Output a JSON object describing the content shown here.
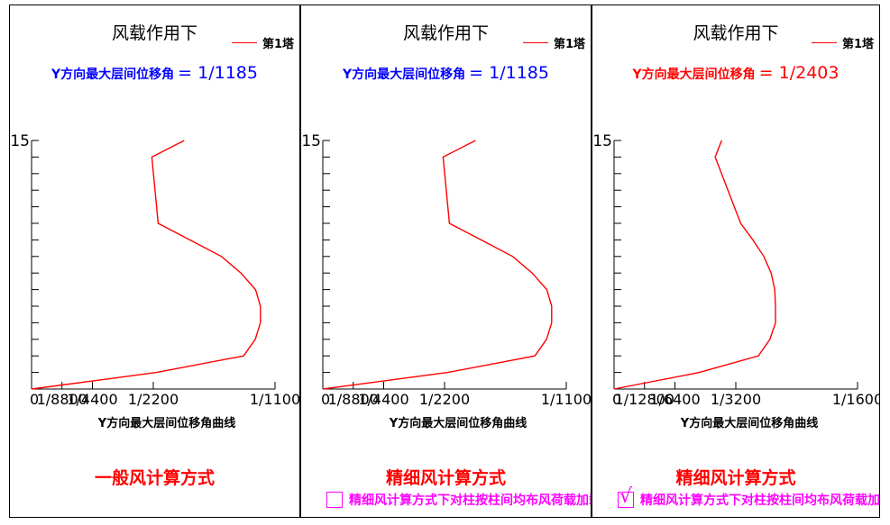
{
  "panels": [
    {
      "title": "风载作用下",
      "legend": "第1塔",
      "drift_label": "Y方向最大层间位移角",
      "drift_eq": "= 1/1185",
      "drift_color": "#0000ff",
      "method": "一般风计算方式",
      "checkbox": null
    },
    {
      "title": "风载作用下",
      "legend": "第1塔",
      "drift_label": "Y方向最大层间位移角",
      "drift_eq": "= 1/1185",
      "drift_color": "#0000ff",
      "method": "精细风计算方式",
      "checkbox": {
        "checked": false,
        "label": "精细风计算方式下对柱按柱间均布风荷载加载"
      }
    },
    {
      "title": "风载作用下",
      "legend": "第1塔",
      "drift_label": "Y方向最大层间位移角",
      "drift_eq": "= 1/2403",
      "drift_color": "#ff0000",
      "method": "精细风计算方式",
      "checkbox": {
        "checked": true,
        "label": "精细风计算方式下对柱按柱间均布风荷载加载"
      }
    }
  ],
  "chart_data": [
    {
      "type": "line",
      "title": "风载作用下",
      "xlabel": "Y方向最大层间位移角曲线",
      "ylabel": "",
      "x_tick_labels": [
        "0",
        "1/8800",
        "1/4400",
        "1/2200",
        "1/1100"
      ],
      "x_tick_values": [
        0,
        0.125,
        0.25,
        0.5,
        1.0
      ],
      "x_unit_note": "fraction of 1/1100",
      "y_tick_labels": [
        "15"
      ],
      "ylim": [
        0,
        15
      ],
      "xlim": [
        0,
        1.0
      ],
      "series_color": "#ff0000",
      "series": [
        {
          "name": "第1塔",
          "x": [
            0,
            0.513,
            0.871,
            0.919,
            0.94,
            0.94,
            0.92,
            0.86,
            0.78,
            0.65,
            0.52,
            0.494,
            0.627
          ],
          "y": [
            0,
            1,
            2,
            3,
            4,
            5,
            6,
            7,
            8,
            9,
            10,
            14,
            15
          ]
        }
      ]
    },
    {
      "type": "line",
      "title": "风载作用下",
      "xlabel": "Y方向最大层间位移角曲线",
      "ylabel": "",
      "x_tick_labels": [
        "0",
        "1/8800",
        "1/4400",
        "1/2200",
        "1/1100"
      ],
      "x_tick_values": [
        0,
        0.125,
        0.25,
        0.5,
        1.0
      ],
      "x_unit_note": "fraction of 1/1100",
      "y_tick_labels": [
        "15"
      ],
      "ylim": [
        0,
        15
      ],
      "xlim": [
        0,
        1.0
      ],
      "series_color": "#ff0000",
      "series": [
        {
          "name": "第1塔",
          "x": [
            0,
            0.513,
            0.871,
            0.919,
            0.94,
            0.94,
            0.92,
            0.86,
            0.78,
            0.65,
            0.52,
            0.494,
            0.627
          ],
          "y": [
            0,
            1,
            2,
            3,
            4,
            5,
            6,
            7,
            8,
            9,
            10,
            14,
            15
          ]
        }
      ]
    },
    {
      "type": "line",
      "title": "风载作用下",
      "xlabel": "Y方向最大层间位移角曲线",
      "ylabel": "",
      "x_tick_labels": [
        "0",
        "1/12800",
        "1/6400",
        "1/3200",
        "1/1600"
      ],
      "x_tick_values": [
        0,
        0.125,
        0.25,
        0.5,
        1.0
      ],
      "x_unit_note": "fraction of 1/1600",
      "y_tick_labels": [
        "15"
      ],
      "ylim": [
        0,
        15
      ],
      "xlim": [
        0,
        1.0
      ],
      "series_color": "#ff0000",
      "series": [
        {
          "name": "第1塔",
          "x": [
            0,
            0.35,
            0.593,
            0.64,
            0.663,
            0.663,
            0.66,
            0.645,
            0.615,
            0.57,
            0.52,
            0.415,
            0.442
          ],
          "y": [
            0,
            1,
            2,
            3,
            4,
            5,
            6,
            7,
            8,
            9,
            10,
            14,
            15
          ]
        }
      ]
    }
  ]
}
